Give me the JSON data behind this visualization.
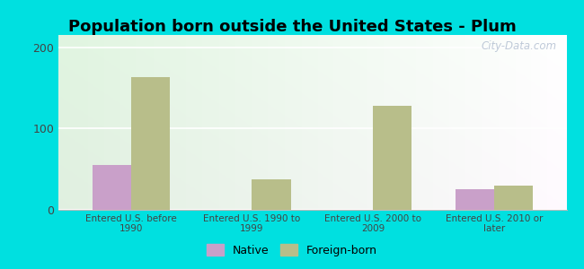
{
  "title": "Population born outside the United States - Plum",
  "categories": [
    "Entered U.S. before\n1990",
    "Entered U.S. 1990 to\n1999",
    "Entered U.S. 2000 to\n2009",
    "Entered U.S. 2010 or\nlater"
  ],
  "native_values": [
    55,
    0,
    0,
    25
  ],
  "foreign_values": [
    163,
    38,
    128,
    30
  ],
  "native_color": "#c9a0c9",
  "foreign_color": "#b8be8a",
  "outer_background": "#00e0e0",
  "ylim": [
    0,
    215
  ],
  "yticks": [
    0,
    100,
    200
  ],
  "bar_width": 0.32,
  "legend_native": "Native",
  "legend_foreign": "Foreign-born",
  "watermark": "City-Data.com",
  "title_fontsize": 13,
  "bg_color_topleft": "#f0f9e8",
  "bg_color_topright": "#fffff0",
  "bg_color_bottomleft": "#d8f0d0",
  "bg_color_bottomright": "#f5fff0"
}
